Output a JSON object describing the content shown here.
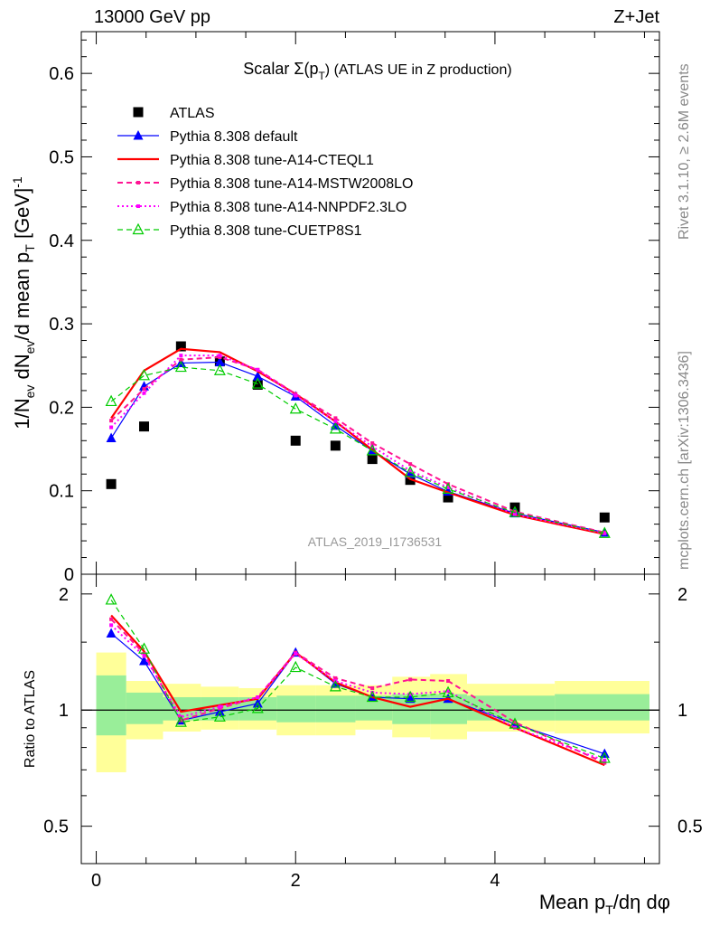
{
  "header": {
    "left": "13000 GeV pp",
    "right": "Z+Jet"
  },
  "side_text": {
    "rivet": "Rivet 3.1.10, ≥ 2.6M events",
    "mcplots": "mcplots.cern.ch [arXiv:1306.3436]"
  },
  "chart_data": [
    {
      "type": "line",
      "title_main": "Scalar Σ(p",
      "title_sub": "T",
      "title_tail": ") (ATLAS UE in Z production)",
      "ylabel": "1/N_ev dN_ev/d mean p_T [GeV]^-1",
      "analysis_tag": "ATLAS_2019_I1736531",
      "ylim": [
        0,
        0.65
      ],
      "xlim": [
        -0.15,
        5.65
      ],
      "yticks": [
        "0",
        "0.1",
        "0.2",
        "0.3",
        "0.4",
        "0.5",
        "0.6"
      ],
      "x": [
        0.15,
        0.48,
        0.85,
        1.24,
        1.62,
        2.0,
        2.4,
        2.77,
        3.15,
        3.53,
        4.2,
        5.1
      ],
      "legend_position": "top-left",
      "series": [
        {
          "name": "ATLAS",
          "color": "#000000",
          "marker": "square",
          "values": [
            0.108,
            0.177,
            0.273,
            0.255,
            0.227,
            0.16,
            0.154,
            0.138,
            0.113,
            0.092,
            0.08,
            0.068
          ]
        },
        {
          "name": "Pythia 8.308 default",
          "color": "#0000ff",
          "marker": "triangle",
          "values": [
            0.163,
            0.225,
            0.253,
            0.254,
            0.237,
            0.213,
            0.178,
            0.148,
            0.12,
            0.099,
            0.073,
            0.05
          ]
        },
        {
          "name": "Pythia 8.308 tune-A14-CTEQL1",
          "color": "#ff0000",
          "marker": "none",
          "values": [
            0.187,
            0.244,
            0.27,
            0.266,
            0.243,
            0.216,
            0.183,
            0.149,
            0.114,
            0.098,
            0.071,
            0.048
          ]
        },
        {
          "name": "Pythia 8.308 tune-A14-MSTW2008LO",
          "color": "#ff1493",
          "marker": "dot",
          "values": [
            0.184,
            0.222,
            0.257,
            0.26,
            0.245,
            0.216,
            0.187,
            0.157,
            0.132,
            0.108,
            0.075,
            0.05
          ]
        },
        {
          "name": "Pythia 8.308 tune-A14-NNPDF2.3LO",
          "color": "#ff00ff",
          "marker": "dot",
          "values": [
            0.176,
            0.217,
            0.262,
            0.262,
            0.245,
            0.214,
            0.183,
            0.153,
            0.124,
            0.104,
            0.072,
            0.049
          ]
        },
        {
          "name": "Pythia 8.308 tune-CUETP8S1",
          "color": "#00cc00",
          "marker": "open-triangle",
          "values": [
            0.207,
            0.238,
            0.248,
            0.244,
            0.228,
            0.198,
            0.174,
            0.148,
            0.122,
            0.102,
            0.074,
            0.049
          ]
        }
      ]
    },
    {
      "type": "line",
      "ylabel": "Ratio to ATLAS",
      "xlabel": "Mean p_T/dη dφ",
      "ylim": [
        0.4,
        2.25
      ],
      "xlim": [
        -0.15,
        5.65
      ],
      "yticks": [
        "0.5",
        "1",
        "2"
      ],
      "xticks": [
        "0",
        "2",
        "4"
      ],
      "x": [
        0.15,
        0.48,
        0.85,
        1.24,
        1.62,
        2.0,
        2.4,
        2.77,
        3.15,
        3.53,
        4.2,
        5.1
      ],
      "bands": [
        {
          "x": [
            0.0,
            0.3
          ],
          "yellow": [
            0.69,
            1.41
          ],
          "green": [
            0.86,
            1.23
          ]
        },
        {
          "x": [
            0.3,
            0.67
          ],
          "yellow": [
            0.84,
            1.19
          ],
          "green": [
            0.92,
            1.11
          ]
        },
        {
          "x": [
            0.67,
            1.05
          ],
          "yellow": [
            0.88,
            1.17
          ],
          "green": [
            0.94,
            1.08
          ]
        },
        {
          "x": [
            1.05,
            1.43
          ],
          "yellow": [
            0.89,
            1.15
          ],
          "green": [
            0.94,
            1.08
          ]
        },
        {
          "x": [
            1.43,
            1.81
          ],
          "yellow": [
            0.89,
            1.14
          ],
          "green": [
            0.94,
            1.08
          ]
        },
        {
          "x": [
            1.81,
            2.2
          ],
          "yellow": [
            0.86,
            1.16
          ],
          "green": [
            0.93,
            1.09
          ]
        },
        {
          "x": [
            2.2,
            2.6
          ],
          "yellow": [
            0.86,
            1.16
          ],
          "green": [
            0.93,
            1.09
          ]
        },
        {
          "x": [
            2.6,
            2.97
          ],
          "yellow": [
            0.89,
            1.16
          ],
          "green": [
            0.94,
            1.09
          ]
        },
        {
          "x": [
            2.97,
            3.35
          ],
          "yellow": [
            0.85,
            1.22
          ],
          "green": [
            0.92,
            1.1
          ]
        },
        {
          "x": [
            3.35,
            3.72
          ],
          "yellow": [
            0.84,
            1.24
          ],
          "green": [
            0.92,
            1.1
          ]
        },
        {
          "x": [
            3.72,
            4.6
          ],
          "yellow": [
            0.88,
            1.17
          ],
          "green": [
            0.94,
            1.09
          ]
        },
        {
          "x": [
            4.6,
            5.55
          ],
          "yellow": [
            0.87,
            1.19
          ],
          "green": [
            0.94,
            1.1
          ]
        }
      ],
      "series": [
        {
          "name": "Pythia 8.308 default",
          "color": "#0000ff",
          "marker": "triangle",
          "values": [
            1.58,
            1.34,
            0.94,
            0.99,
            1.04,
            1.41,
            1.17,
            1.08,
            1.07,
            1.07,
            0.92,
            0.77
          ]
        },
        {
          "name": "Pythia 8.308 tune-A14-CTEQL1",
          "color": "#ff0000",
          "marker": "none",
          "values": [
            1.76,
            1.42,
            0.99,
            1.03,
            1.07,
            1.41,
            1.18,
            1.08,
            1.02,
            1.07,
            0.9,
            0.72
          ]
        },
        {
          "name": "Pythia 8.308 tune-A14-MSTW2008LO",
          "color": "#ff1493",
          "marker": "dot",
          "values": [
            1.72,
            1.4,
            0.94,
            1.01,
            1.08,
            1.41,
            1.21,
            1.14,
            1.2,
            1.19,
            0.93,
            0.73
          ]
        },
        {
          "name": "Pythia 8.308 tune-A14-NNPDF2.3LO",
          "color": "#ff00ff",
          "marker": "dot",
          "values": [
            1.66,
            1.38,
            0.96,
            1.02,
            1.08,
            1.4,
            1.19,
            1.11,
            1.1,
            1.12,
            0.9,
            0.74
          ]
        },
        {
          "name": "Pythia 8.308 tune-CUETP8S1",
          "color": "#00cc00",
          "marker": "open-triangle",
          "values": [
            1.93,
            1.44,
            0.93,
            0.96,
            1.01,
            1.29,
            1.15,
            1.08,
            1.08,
            1.11,
            0.92,
            0.75
          ]
        }
      ]
    }
  ]
}
